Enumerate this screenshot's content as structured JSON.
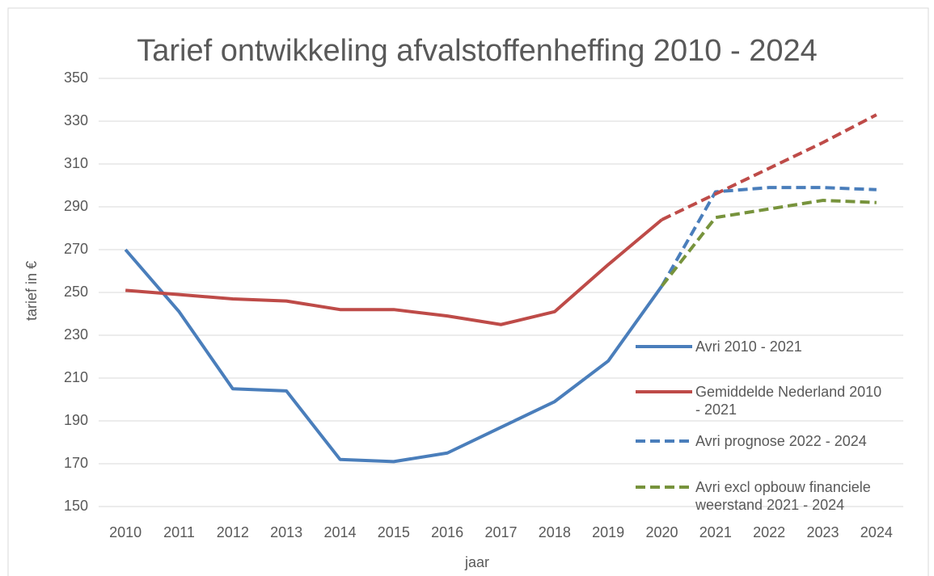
{
  "chart_data": {
    "type": "line",
    "title": "Tarief ontwikkeling afvalstoffenheffing 2010 - 2024",
    "x_label": "jaar",
    "y_label": "tarief in €",
    "categories": [
      "2010",
      "2011",
      "2012",
      "2013",
      "2014",
      "2015",
      "2016",
      "2017",
      "2018",
      "2019",
      "2020",
      "2021",
      "2022",
      "2023",
      "2024"
    ],
    "ylim": [
      150,
      350
    ],
    "yticks": [
      150,
      170,
      190,
      210,
      230,
      250,
      270,
      290,
      310,
      330,
      350
    ],
    "grid": true,
    "series": [
      {
        "name": "Avri 2010 - 2021",
        "color": "#4a7ebb",
        "dashed": false,
        "values": [
          270,
          241,
          205,
          204,
          172,
          171,
          175,
          187,
          199,
          218,
          253,
          null,
          null,
          null,
          null
        ]
      },
      {
        "name": "Gemiddelde Nederland 2010 - 2021",
        "color": "#be4b48",
        "dashed": false,
        "values": [
          251,
          249,
          247,
          246,
          242,
          242,
          239,
          235,
          241,
          263,
          284,
          null,
          null,
          null,
          null
        ]
      },
      {
        "name": "Avri  prognose 2022 - 2024",
        "color": "#4a7ebb",
        "dashed": true,
        "values": [
          null,
          null,
          null,
          null,
          null,
          null,
          null,
          null,
          null,
          null,
          253,
          297,
          299,
          299,
          298
        ]
      },
      {
        "name": "Avri excl opbouw financiele weerstand 2021 - 2024",
        "color": "#77933c",
        "dashed": true,
        "values": [
          null,
          null,
          null,
          null,
          null,
          null,
          null,
          null,
          null,
          null,
          253,
          285,
          289,
          293,
          292
        ]
      },
      {
        "color": "#be4b48",
        "dashed": true,
        "values": [
          null,
          null,
          null,
          null,
          null,
          null,
          null,
          null,
          null,
          null,
          284,
          296,
          308,
          320,
          333
        ]
      }
    ]
  }
}
